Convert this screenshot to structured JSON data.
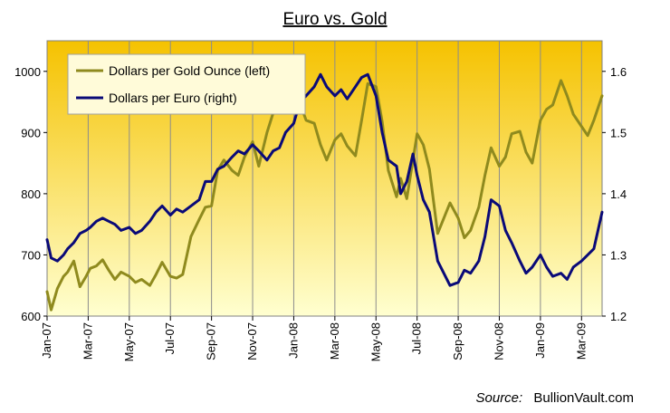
{
  "chart_data": {
    "type": "line",
    "title": "Euro vs. Gold",
    "source_label": "Source:",
    "source_name": "BullionVault.com",
    "x_ticks": [
      "Jan-07",
      "Mar-07",
      "May-07",
      "Jul-07",
      "Sep-07",
      "Nov-07",
      "Jan-08",
      "Mar-08",
      "May-08",
      "Jul-08",
      "Sep-08",
      "Nov-08",
      "Jan-09",
      "Mar-09"
    ],
    "x_range_months": [
      0,
      27
    ],
    "y_left": {
      "ticks": [
        "600",
        "700",
        "800",
        "900",
        "1000"
      ],
      "min": 600,
      "max": 1050
    },
    "y_right": {
      "ticks": [
        "1.2",
        "1.3",
        "1.4",
        "1.5",
        "1.6"
      ],
      "min": 1.2,
      "max": 1.65
    },
    "legend_position": "top-left",
    "grid": "vertical",
    "colors": {
      "background_top": "#f5c200",
      "background_bottom": "#ffffd0",
      "gold_line": "#8f8a1e",
      "euro_line": "#0a0a78"
    },
    "series": [
      {
        "name": "Dollars per Gold Ounce (left)",
        "axis": "left",
        "x": [
          0,
          0.2,
          0.5,
          0.8,
          1.0,
          1.3,
          1.6,
          1.9,
          2.1,
          2.4,
          2.7,
          3.0,
          3.3,
          3.6,
          4.0,
          4.3,
          4.6,
          5.0,
          5.3,
          5.6,
          6.0,
          6.3,
          6.6,
          7.0,
          7.4,
          7.7,
          8.0,
          8.3,
          8.6,
          9.0,
          9.3,
          9.6,
          10.0,
          10.3,
          10.7,
          11.0,
          11.3,
          11.6,
          12.0,
          12.3,
          12.6,
          13.0,
          13.3,
          13.6,
          14.0,
          14.3,
          14.6,
          15.0,
          15.3,
          15.6,
          16.0,
          16.3,
          16.6,
          17.0,
          17.2,
          17.5,
          17.8,
          18.0,
          18.3,
          18.6,
          19.0,
          19.3,
          19.6,
          20.0,
          20.3,
          20.6,
          21.0,
          21.3,
          21.6,
          22.0,
          22.3,
          22.6,
          23.0,
          23.3,
          23.6,
          24.0,
          24.3,
          24.6,
          25.0,
          25.3,
          25.6,
          26.0,
          26.3,
          26.6,
          27.0
        ],
        "values": [
          640,
          610,
          645,
          665,
          672,
          690,
          648,
          665,
          678,
          682,
          692,
          675,
          660,
          672,
          665,
          655,
          660,
          650,
          668,
          688,
          665,
          662,
          668,
          730,
          758,
          778,
          780,
          838,
          855,
          838,
          830,
          860,
          885,
          845,
          900,
          932,
          948,
          978,
          1005,
          948,
          920,
          915,
          880,
          855,
          888,
          898,
          878,
          862,
          920,
          980,
          975,
          918,
          838,
          795,
          825,
          792,
          855,
          898,
          880,
          840,
          735,
          760,
          785,
          760,
          728,
          740,
          778,
          830,
          875,
          845,
          860,
          898,
          902,
          868,
          850,
          920,
          938,
          945,
          985,
          960,
          930,
          910,
          895,
          920,
          960
        ]
      },
      {
        "name": "Dollars per Euro (right)",
        "axis": "right",
        "x": [
          0,
          0.2,
          0.5,
          0.8,
          1.0,
          1.3,
          1.6,
          1.9,
          2.1,
          2.4,
          2.7,
          3.0,
          3.3,
          3.6,
          4.0,
          4.3,
          4.6,
          5.0,
          5.3,
          5.6,
          6.0,
          6.3,
          6.6,
          7.0,
          7.4,
          7.7,
          8.0,
          8.3,
          8.6,
          9.0,
          9.3,
          9.6,
          10.0,
          10.3,
          10.7,
          11.0,
          11.3,
          11.6,
          12.0,
          12.3,
          12.6,
          13.0,
          13.3,
          13.6,
          14.0,
          14.3,
          14.6,
          15.0,
          15.3,
          15.6,
          16.0,
          16.3,
          16.6,
          17.0,
          17.2,
          17.5,
          17.8,
          18.0,
          18.3,
          18.6,
          19.0,
          19.3,
          19.6,
          20.0,
          20.3,
          20.6,
          21.0,
          21.3,
          21.6,
          22.0,
          22.3,
          22.6,
          23.0,
          23.3,
          23.6,
          24.0,
          24.3,
          24.6,
          25.0,
          25.3,
          25.6,
          26.0,
          26.3,
          26.6,
          27.0
        ],
        "values": [
          1.325,
          1.295,
          1.29,
          1.3,
          1.31,
          1.32,
          1.335,
          1.34,
          1.345,
          1.355,
          1.36,
          1.355,
          1.35,
          1.34,
          1.345,
          1.335,
          1.34,
          1.355,
          1.37,
          1.38,
          1.365,
          1.375,
          1.37,
          1.38,
          1.39,
          1.42,
          1.42,
          1.44,
          1.445,
          1.46,
          1.47,
          1.465,
          1.48,
          1.47,
          1.455,
          1.47,
          1.475,
          1.5,
          1.515,
          1.55,
          1.56,
          1.575,
          1.595,
          1.575,
          1.56,
          1.57,
          1.555,
          1.575,
          1.59,
          1.595,
          1.56,
          1.5,
          1.455,
          1.445,
          1.4,
          1.42,
          1.465,
          1.43,
          1.39,
          1.37,
          1.29,
          1.27,
          1.25,
          1.255,
          1.275,
          1.27,
          1.29,
          1.33,
          1.39,
          1.38,
          1.34,
          1.32,
          1.29,
          1.27,
          1.28,
          1.3,
          1.28,
          1.265,
          1.27,
          1.26,
          1.28,
          1.29,
          1.3,
          1.31,
          1.37
        ]
      }
    ]
  }
}
